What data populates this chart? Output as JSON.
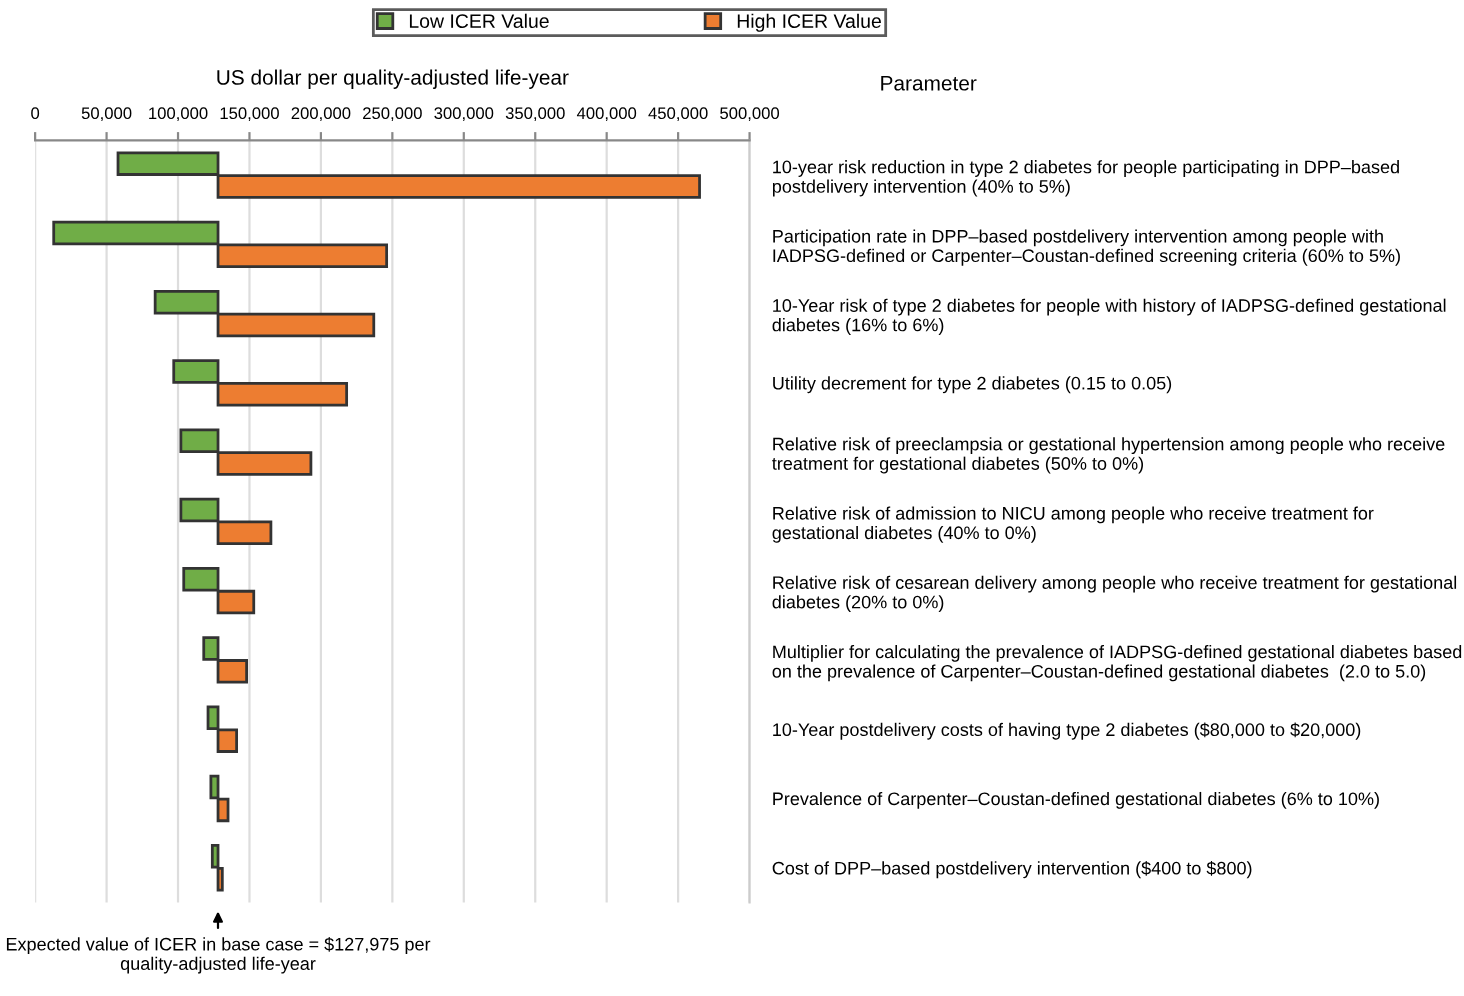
{
  "chart_data": {
    "type": "bar",
    "orientation": "horizontal",
    "xlabel": "US dollar per quality-adjusted life-year",
    "ylabel": "Parameter",
    "categories": [
      "10-year risk reduction in type 2 diabetes for people participating in DPP–based postdelivery intervention (40% to 5%)",
      "Participation rate in DPP–based postdelivery intervention among people with IADPSG-defined or Carpenter–Coustan-defined screening criteria (60% to 5%)",
      "10-Year risk of type 2 diabetes for people with history of IADPSG-defined gestational diabetes (16% to 6%)",
      "Utility decrement for type 2 diabetes (0.15 to 0.05)",
      "Relative risk of preeclampsia or gestational hypertension among people who receive treatment for gestational diabetes (50% to 0%)",
      "Relative risk of admission to NICU among people who receive treatment for gestational diabetes (40% to 0%)",
      "Relative risk of cesarean delivery among people who receive treatment for gestational diabetes (20% to 0%)",
      "Multiplier for calculating the prevalence of IADPSG-defined gestational diabetes based on the prevalence of Carpenter–Coustan-defined gestational diabetes  (2.0 to 5.0)",
      "10-Year postdelivery costs of having type 2 diabetes ($80,000 to $20,000)",
      "Prevalence of Carpenter–Coustan-defined gestational diabetes (6% to 10%)",
      "Cost of DPP–based postdelivery intervention ($400 to $800)"
    ],
    "series": [
      {
        "name": "Low ICER Value",
        "color": "#70ad47",
        "base": [
          58000,
          13000,
          84000,
          97000,
          102000,
          102000,
          104000,
          118000,
          121000,
          123000,
          124000
        ],
        "values": [
          70000,
          115000,
          44000,
          31000,
          26000,
          26000,
          24000,
          10000,
          7000,
          5000,
          4000
        ]
      },
      {
        "name": "High ICER Value",
        "color": "#ed7d31",
        "base": [
          128000,
          128000,
          128000,
          128000,
          128000,
          128000,
          128000,
          128000,
          128000,
          128000,
          128000
        ],
        "values": [
          337000,
          118000,
          109000,
          90000,
          65000,
          37000,
          25000,
          20000,
          13000,
          7000,
          3000
        ]
      }
    ],
    "xlim": [
      0,
      500000
    ],
    "xticks": [
      0,
      {
        "value": 50000,
        "label": "50,000"
      },
      {
        "value": 100000,
        "label": "100,000"
      },
      {
        "value": 150000,
        "label": "150,000"
      },
      {
        "value": 200000,
        "label": "200,000"
      },
      {
        "value": 250000,
        "label": "250,000"
      },
      {
        "value": 300000,
        "label": "300,000"
      },
      {
        "value": 350000,
        "label": "350,000"
      },
      {
        "value": 400000,
        "label": "400,000"
      },
      {
        "value": 450000,
        "label": "450,000"
      },
      {
        "value": 500000,
        "label": "500,000"
      }
    ],
    "grid": "x",
    "legend": "top",
    "annotations": [
      {
        "text": "Expected value of ICER in base case = $127,975 per quality-adjusted life-year",
        "x": 127975
      }
    ]
  }
}
